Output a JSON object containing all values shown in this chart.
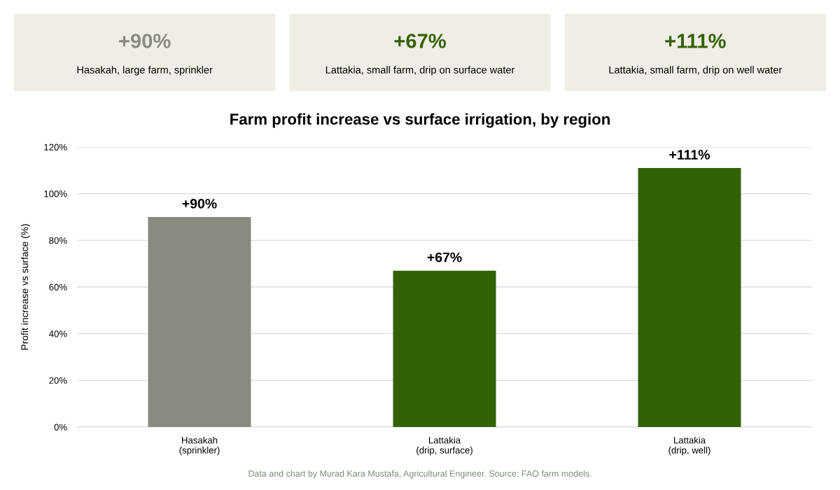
{
  "chart_data": [
    {
      "type": "other",
      "annotations": [
        "+90%",
        "Hasakah, large farm, sprinkler",
        "+67%",
        "Lattakia, small farm, drip on surface water",
        "+111%",
        "Lattakia, small farm, drip on well water"
      ]
    },
    {
      "type": "bar",
      "title": "Farm profit increase vs surface irrigation, by region",
      "ylabel": "Profit increase vs surface (%)",
      "categories": [
        "Hasakah\n(sprinkler)",
        "Lattakia\n(drip, surface)",
        "Lattakia\n(drip, well)"
      ],
      "values": [
        90,
        67,
        111
      ],
      "colors": [
        "#8a8a80",
        "#336105",
        "#336105"
      ],
      "value_labels": [
        "+90%",
        "+67%",
        "+111%"
      ],
      "ylim": [
        0,
        120
      ],
      "yticks": [
        {
          "value": 0,
          "label": "0%"
        },
        {
          "value": 20,
          "label": "20%"
        },
        {
          "value": 40,
          "label": "40%"
        },
        {
          "value": 60,
          "label": "60%"
        },
        {
          "value": 80,
          "label": "80%"
        },
        {
          "value": 100,
          "label": "100%"
        },
        {
          "value": 120,
          "label": "120%"
        }
      ],
      "grid": "y",
      "legend": false,
      "annotations": [
        "Data and chart by Murad Kara Mustafa, Agricultural Engineer. Source: FAO farm models."
      ]
    }
  ]
}
